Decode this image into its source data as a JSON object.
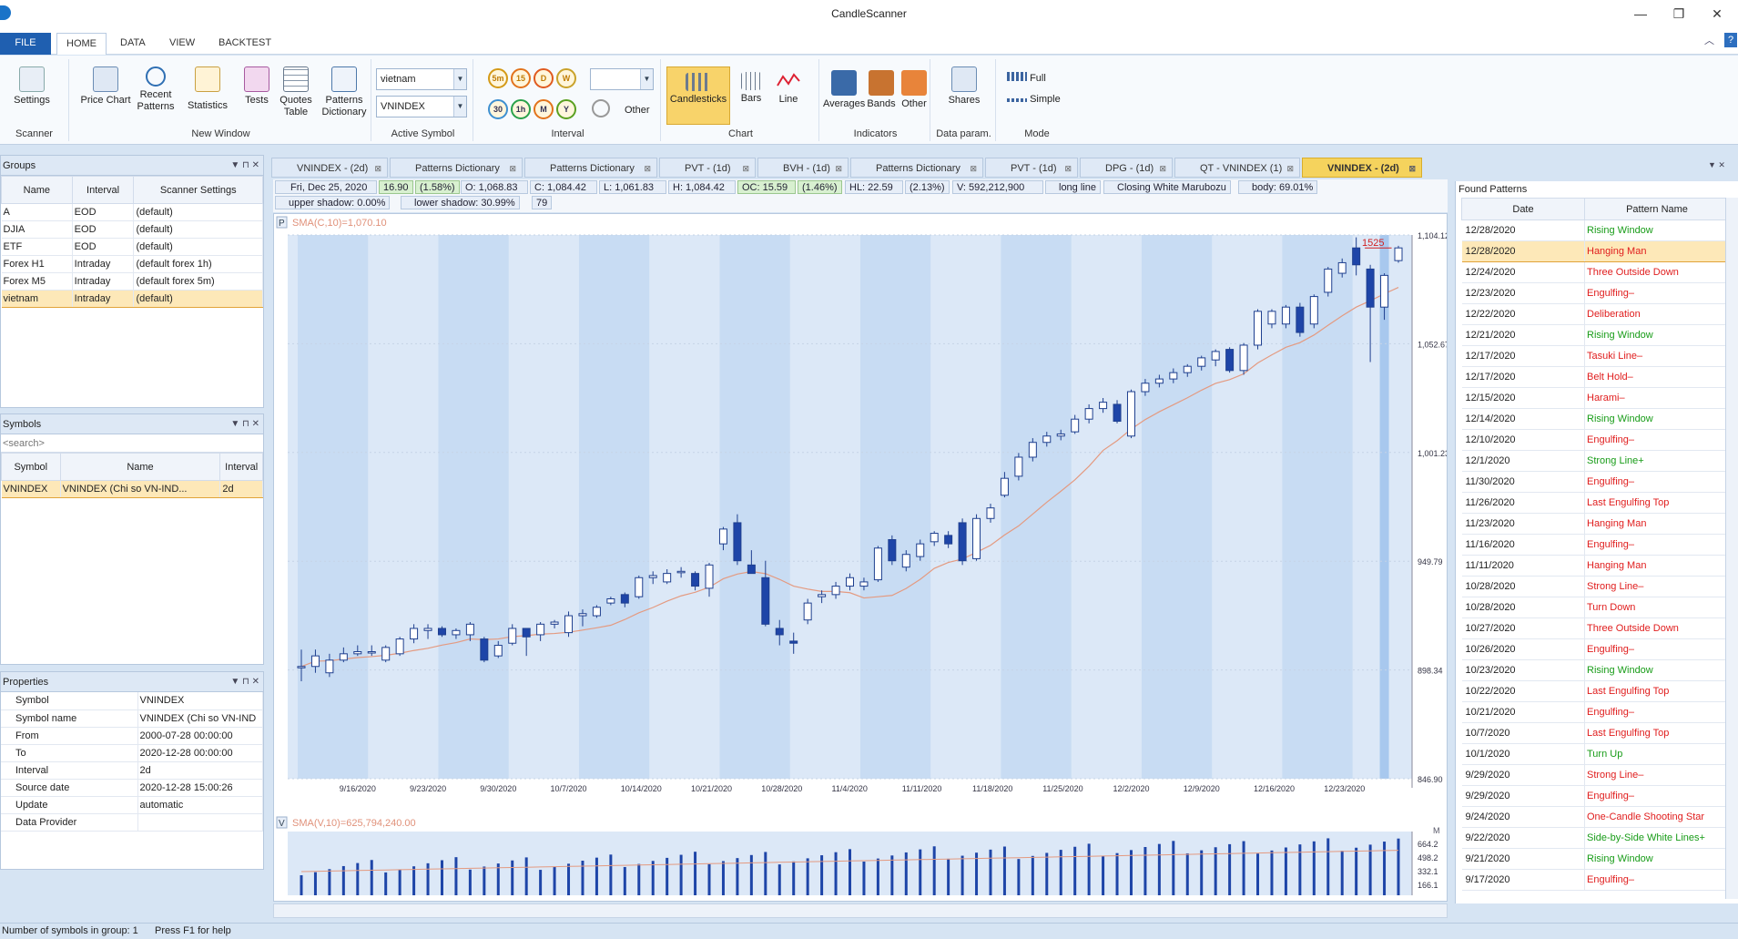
{
  "app": {
    "title": "CandleScanner"
  },
  "menu": {
    "file": "FILE",
    "home": "HOME",
    "data": "DATA",
    "view": "VIEW",
    "backtest": "BACKTEST"
  },
  "ribbon": {
    "scanner": {
      "label": "Scanner",
      "settings": "Settings"
    },
    "new_window": {
      "label": "New Window",
      "price_chart": "Price Chart",
      "recent_patterns_1": "Recent",
      "recent_patterns_2": "Patterns",
      "statistics": "Statistics",
      "tests": "Tests",
      "quotes_1": "Quotes",
      "quotes_2": "Table",
      "patterns_dict_1": "Patterns",
      "patterns_dict_2": "Dictionary"
    },
    "active_symbol": {
      "label": "Active Symbol",
      "group_value": "vietnam",
      "symbol_value": "VNINDEX"
    },
    "interval": {
      "label": "Interval",
      "row1": [
        "5m",
        "15",
        "D",
        "W"
      ],
      "row2": [
        "30",
        "1h",
        "M",
        "Y"
      ],
      "other": "Other"
    },
    "chart": {
      "label": "Chart",
      "candlesticks": "Candlesticks",
      "bars": "Bars",
      "line": "Line"
    },
    "indicators": {
      "label": "Indicators",
      "averages": "Averages",
      "bands": "Bands",
      "other": "Other"
    },
    "data_param": {
      "label": "Data param.",
      "shares": "Shares"
    },
    "mode": {
      "label": "Mode",
      "full": "Full",
      "simple": "Simple"
    }
  },
  "groups": {
    "title": "Groups",
    "headers": [
      "Name",
      "Interval",
      "Scanner Settings"
    ],
    "rows": [
      [
        "A",
        "EOD",
        "(default)"
      ],
      [
        "DJIA",
        "EOD",
        "(default)"
      ],
      [
        "ETF",
        "EOD",
        "(default)"
      ],
      [
        "Forex H1",
        "Intraday",
        "(default forex 1h)"
      ],
      [
        "Forex M5",
        "Intraday",
        "(default forex 5m)"
      ],
      [
        "vietnam",
        "Intraday",
        "(default)"
      ]
    ],
    "selected": 5
  },
  "symbols": {
    "title": "Symbols",
    "search_placeholder": "<search>",
    "headers": [
      "Symbol",
      "Name",
      "Interval"
    ],
    "rows": [
      [
        "VNINDEX",
        "VNINDEX (Chi so VN-IND...",
        "2d"
      ]
    ]
  },
  "properties": {
    "title": "Properties",
    "rows": [
      [
        "Symbol",
        "VNINDEX"
      ],
      [
        "Symbol name",
        "VNINDEX (Chi so VN-IND"
      ],
      [
        "From",
        "2000-07-28 00:00:00"
      ],
      [
        "To",
        "2020-12-28 00:00:00"
      ],
      [
        "Interval",
        "2d"
      ],
      [
        "Source date",
        "2020-12-28 15:00:26"
      ],
      [
        "Update",
        "automatic"
      ],
      [
        "Data Provider",
        ""
      ]
    ]
  },
  "doc_tabs": [
    "VNINDEX - (2d)",
    "Patterns Dictionary",
    "Patterns Dictionary",
    "PVT - (1d)",
    "BVH - (1d)",
    "Patterns Dictionary",
    "PVT - (1d)",
    "DPG - (1d)",
    "QT - VNINDEX (1)",
    "VNINDEX - (2d)"
  ],
  "active_tab": 9,
  "infobar": {
    "date": "Fri, Dec 25, 2020",
    "chg": "16.90",
    "chg_pct": "(1.58%)",
    "o": "O:   1,068.83",
    "c": "C:   1,084.42",
    "l": "L:   1,061.83",
    "h": "H:   1,084.42",
    "oc": "OC:   15.59",
    "oc_pct": "(1.46%)",
    "hl": "HL:   22.59",
    "hl_pct": "(2.13%)",
    "v": "V:   592,212,900",
    "long_line": "long line",
    "pattern": "Closing White Marubozu",
    "body": "body:  69.01%",
    "upper": "upper shadow:  0.00%",
    "lower": "lower shadow:  30.99%",
    "count": "79"
  },
  "chart": {
    "price_label": "SMA(C,10)=1,070.10",
    "p_btn": "P",
    "v_btn": "V",
    "volume_label": "SMA(V,10)=625,794,240.00",
    "marker": "1525",
    "m_unit": "M",
    "y_ticks": [
      "1,104.12",
      "1,052.67",
      "1,001.23",
      "949.79",
      "898.34",
      "846.90"
    ],
    "x_ticks": [
      "9/16/2020",
      "9/23/2020",
      "9/30/2020",
      "10/7/2020",
      "10/14/2020",
      "10/21/2020",
      "10/28/2020",
      "11/4/2020",
      "11/11/2020",
      "11/18/2020",
      "11/25/2020",
      "12/2/2020",
      "12/9/2020",
      "12/16/2020",
      "12/23/2020"
    ],
    "vol_ticks": [
      "664.2",
      "498.2",
      "332.1",
      "166.1"
    ]
  },
  "chart_data": {
    "type": "candlestick",
    "ylim": [
      846.9,
      1104.12
    ],
    "candles": [
      [
        900,
        900,
        893,
        908
      ],
      [
        900,
        905,
        897,
        908
      ],
      [
        897,
        903,
        895,
        906
      ],
      [
        903,
        906,
        902,
        909
      ],
      [
        906,
        907,
        905,
        910
      ],
      [
        907,
        907,
        905,
        910
      ],
      [
        903,
        909,
        902,
        910
      ],
      [
        906,
        913,
        905,
        914
      ],
      [
        913,
        918,
        911,
        920
      ],
      [
        917,
        918,
        913,
        920
      ],
      [
        918,
        915,
        914,
        919
      ],
      [
        915,
        917,
        913,
        918
      ],
      [
        915,
        920,
        912,
        921
      ],
      [
        913,
        903,
        902,
        914
      ],
      [
        905,
        910,
        904,
        912
      ],
      [
        911,
        918,
        910,
        920
      ],
      [
        918,
        914,
        905,
        918
      ],
      [
        915,
        920,
        912,
        921
      ],
      [
        920,
        921,
        918,
        922
      ],
      [
        916,
        924,
        914,
        926
      ],
      [
        924,
        925,
        919,
        927
      ],
      [
        924,
        928,
        923,
        929
      ],
      [
        930,
        932,
        929,
        933
      ],
      [
        934,
        930,
        928,
        935
      ],
      [
        933,
        942,
        932,
        943
      ],
      [
        942,
        943,
        939,
        945
      ],
      [
        940,
        944,
        939,
        946
      ],
      [
        945,
        945,
        942,
        947
      ],
      [
        944,
        938,
        936,
        945
      ],
      [
        937,
        948,
        933,
        949
      ],
      [
        958,
        965,
        955,
        966
      ],
      [
        968,
        950,
        948,
        972
      ],
      [
        948,
        944,
        944,
        955
      ],
      [
        942,
        920,
        919,
        950
      ],
      [
        918,
        915,
        910,
        922
      ],
      [
        912,
        911,
        906,
        916
      ],
      [
        922,
        930,
        920,
        932
      ],
      [
        933,
        934,
        930,
        936
      ],
      [
        934,
        938,
        932,
        940
      ],
      [
        938,
        942,
        936,
        944
      ],
      [
        938,
        940,
        936,
        942
      ],
      [
        941,
        956,
        940,
        957
      ],
      [
        960,
        950,
        948,
        962
      ],
      [
        947,
        953,
        945,
        955
      ],
      [
        952,
        958,
        950,
        960
      ],
      [
        959,
        963,
        957,
        964
      ],
      [
        962,
        958,
        956,
        964
      ],
      [
        968,
        950,
        948,
        970
      ],
      [
        951,
        970,
        950,
        972
      ],
      [
        970,
        975,
        968,
        977
      ],
      [
        981,
        989,
        980,
        992
      ],
      [
        990,
        999,
        988,
        1001
      ],
      [
        999,
        1006,
        997,
        1008
      ],
      [
        1006,
        1009,
        1004,
        1011
      ],
      [
        1009,
        1010,
        1007,
        1012
      ],
      [
        1011,
        1017,
        1010,
        1019
      ],
      [
        1017,
        1022,
        1015,
        1024
      ],
      [
        1022,
        1025,
        1020,
        1027
      ],
      [
        1024,
        1016,
        1015,
        1026
      ],
      [
        1009,
        1030,
        1008,
        1031
      ],
      [
        1030,
        1034,
        1028,
        1036
      ],
      [
        1034,
        1036,
        1032,
        1038
      ],
      [
        1036,
        1039,
        1034,
        1041
      ],
      [
        1039,
        1042,
        1037,
        1043
      ],
      [
        1042,
        1046,
        1040,
        1047
      ],
      [
        1045,
        1049,
        1042,
        1050
      ],
      [
        1050,
        1040,
        1039,
        1051
      ],
      [
        1040,
        1052,
        1038,
        1053
      ],
      [
        1052,
        1068,
        1050,
        1069
      ],
      [
        1062,
        1068,
        1060,
        1069
      ],
      [
        1062,
        1070,
        1060,
        1071
      ],
      [
        1070,
        1058,
        1056,
        1072
      ],
      [
        1062,
        1075,
        1060,
        1076
      ],
      [
        1077,
        1088,
        1075,
        1089
      ],
      [
        1086,
        1091,
        1084,
        1093
      ],
      [
        1098,
        1090,
        1085,
        1103
      ],
      [
        1088,
        1070,
        1044,
        1090
      ],
      [
        1070,
        1085,
        1064,
        1086
      ],
      [
        1092,
        1098,
        1091,
        1099
      ]
    ]
  },
  "found_patterns": {
    "title": "Found Patterns",
    "headers": [
      "Date",
      "Pattern Name"
    ],
    "selected": 1,
    "rows": [
      [
        "12/28/2020",
        "Rising Window",
        "g"
      ],
      [
        "12/28/2020",
        "Hanging Man",
        "r"
      ],
      [
        "12/24/2020",
        "Three Outside Down",
        "r"
      ],
      [
        "12/23/2020",
        "Engulfing–",
        "r"
      ],
      [
        "12/22/2020",
        "Deliberation",
        "r"
      ],
      [
        "12/21/2020",
        "Rising Window",
        "g"
      ],
      [
        "12/17/2020",
        "Tasuki Line–",
        "r"
      ],
      [
        "12/17/2020",
        "Belt Hold–",
        "r"
      ],
      [
        "12/15/2020",
        "Harami–",
        "r"
      ],
      [
        "12/14/2020",
        "Rising Window",
        "g"
      ],
      [
        "12/10/2020",
        "Engulfing–",
        "r"
      ],
      [
        "12/1/2020",
        "Strong Line+",
        "g"
      ],
      [
        "11/30/2020",
        "Engulfing–",
        "r"
      ],
      [
        "11/26/2020",
        "Last Engulfing Top",
        "r"
      ],
      [
        "11/23/2020",
        "Hanging Man",
        "r"
      ],
      [
        "11/16/2020",
        "Engulfing–",
        "r"
      ],
      [
        "11/11/2020",
        "Hanging Man",
        "r"
      ],
      [
        "10/28/2020",
        "Strong Line–",
        "r"
      ],
      [
        "10/28/2020",
        "Turn Down",
        "r"
      ],
      [
        "10/27/2020",
        "Three Outside Down",
        "r"
      ],
      [
        "10/26/2020",
        "Engulfing–",
        "r"
      ],
      [
        "10/23/2020",
        "Rising Window",
        "g"
      ],
      [
        "10/22/2020",
        "Last Engulfing Top",
        "r"
      ],
      [
        "10/21/2020",
        "Engulfing–",
        "r"
      ],
      [
        "10/7/2020",
        "Last Engulfing Top",
        "r"
      ],
      [
        "10/1/2020",
        "Turn Up",
        "g"
      ],
      [
        "9/29/2020",
        "Strong Line–",
        "r"
      ],
      [
        "9/29/2020",
        "Engulfing–",
        "r"
      ],
      [
        "9/24/2020",
        "One-Candle Shooting Star",
        "r"
      ],
      [
        "9/22/2020",
        "Side-by-Side White Lines+",
        "g"
      ],
      [
        "9/21/2020",
        "Rising Window",
        "g"
      ],
      [
        "9/17/2020",
        "Engulfing–",
        "r"
      ]
    ]
  },
  "status": {
    "left": "Number of symbols in group: 1",
    "help": "Press F1 for help"
  }
}
